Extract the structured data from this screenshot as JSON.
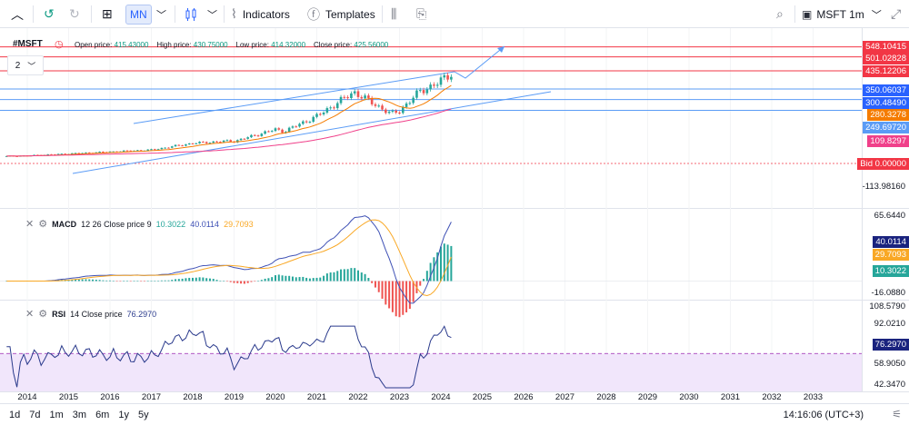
{
  "toolbar": {
    "timeframe": "MN",
    "indicators_label": "Indicators",
    "templates_label": "Templates",
    "symbol_label": "MSFT 1m"
  },
  "legend": {
    "symbol": "#MSFT",
    "open_label": "Open price:",
    "open_value": "415.43000",
    "high_label": "High price:",
    "high_value": "430.75000",
    "low_label": "Low price:",
    "low_value": "414.32000",
    "close_label": "Close price:",
    "close_value": "425.56000",
    "collapse_count": "2"
  },
  "macd": {
    "name": "MACD",
    "params": "12 26 Close price 9",
    "histogram_value": "10.3022",
    "macd_value": "40.0114",
    "signal_value": "29.7093"
  },
  "rsi": {
    "name": "RSI",
    "params": "14 Close price",
    "value": "76.2970"
  },
  "price_axis": {
    "badges": [
      {
        "text": "548.10415",
        "color": "#f23645"
      },
      {
        "text": "501.02828",
        "color": "#f23645"
      },
      {
        "text": "435.12206",
        "color": "#f23645"
      },
      {
        "text": "350.06037",
        "color": "#2962ff"
      },
      {
        "text": "300.48490",
        "color": "#2962ff"
      },
      {
        "text": "280.3278",
        "color": "#f57c00"
      },
      {
        "text": "249.69720",
        "color": "#5b9cf6"
      },
      {
        "text": "109.8297",
        "color": "#f0408a"
      },
      {
        "text": "Bid 0.00000",
        "color": "#f23645"
      }
    ],
    "ticks": [
      "-113.98160"
    ],
    "macd_ticks": [
      "65.6440",
      "-16.0880"
    ],
    "macd_badges": [
      {
        "text": "40.0114",
        "color": "#1a237e"
      },
      {
        "text": "29.7093",
        "color": "#f9a825"
      },
      {
        "text": "10.3022",
        "color": "#26a69a"
      }
    ],
    "rsi_ticks": [
      "108.5790",
      "92.0210",
      "58.9050",
      "42.3470"
    ],
    "rsi_badge": {
      "text": "76.2970",
      "color": "#1a237e"
    }
  },
  "time_axis": [
    "2014",
    "2015",
    "2016",
    "2017",
    "2018",
    "2019",
    "2020",
    "2021",
    "2022",
    "2023",
    "2024",
    "2025",
    "2026",
    "2027",
    "2028",
    "2029",
    "2030",
    "2031",
    "2032",
    "2033"
  ],
  "bottom": {
    "ranges": [
      "1d",
      "7d",
      "1m",
      "3m",
      "6m",
      "1y",
      "5y"
    ],
    "clock": "14:16:06 (UTC+3)"
  },
  "colors": {
    "bull": "#26a69a",
    "bear": "#ef5350",
    "channel": "#5b9cf6",
    "sma": "#f57c00",
    "sma_long": "#f0408a",
    "macd": "#3f51b5",
    "signal": "#f9a825",
    "rsi": "#2a3a8c",
    "rsi_band": "#f1e6fb"
  }
}
